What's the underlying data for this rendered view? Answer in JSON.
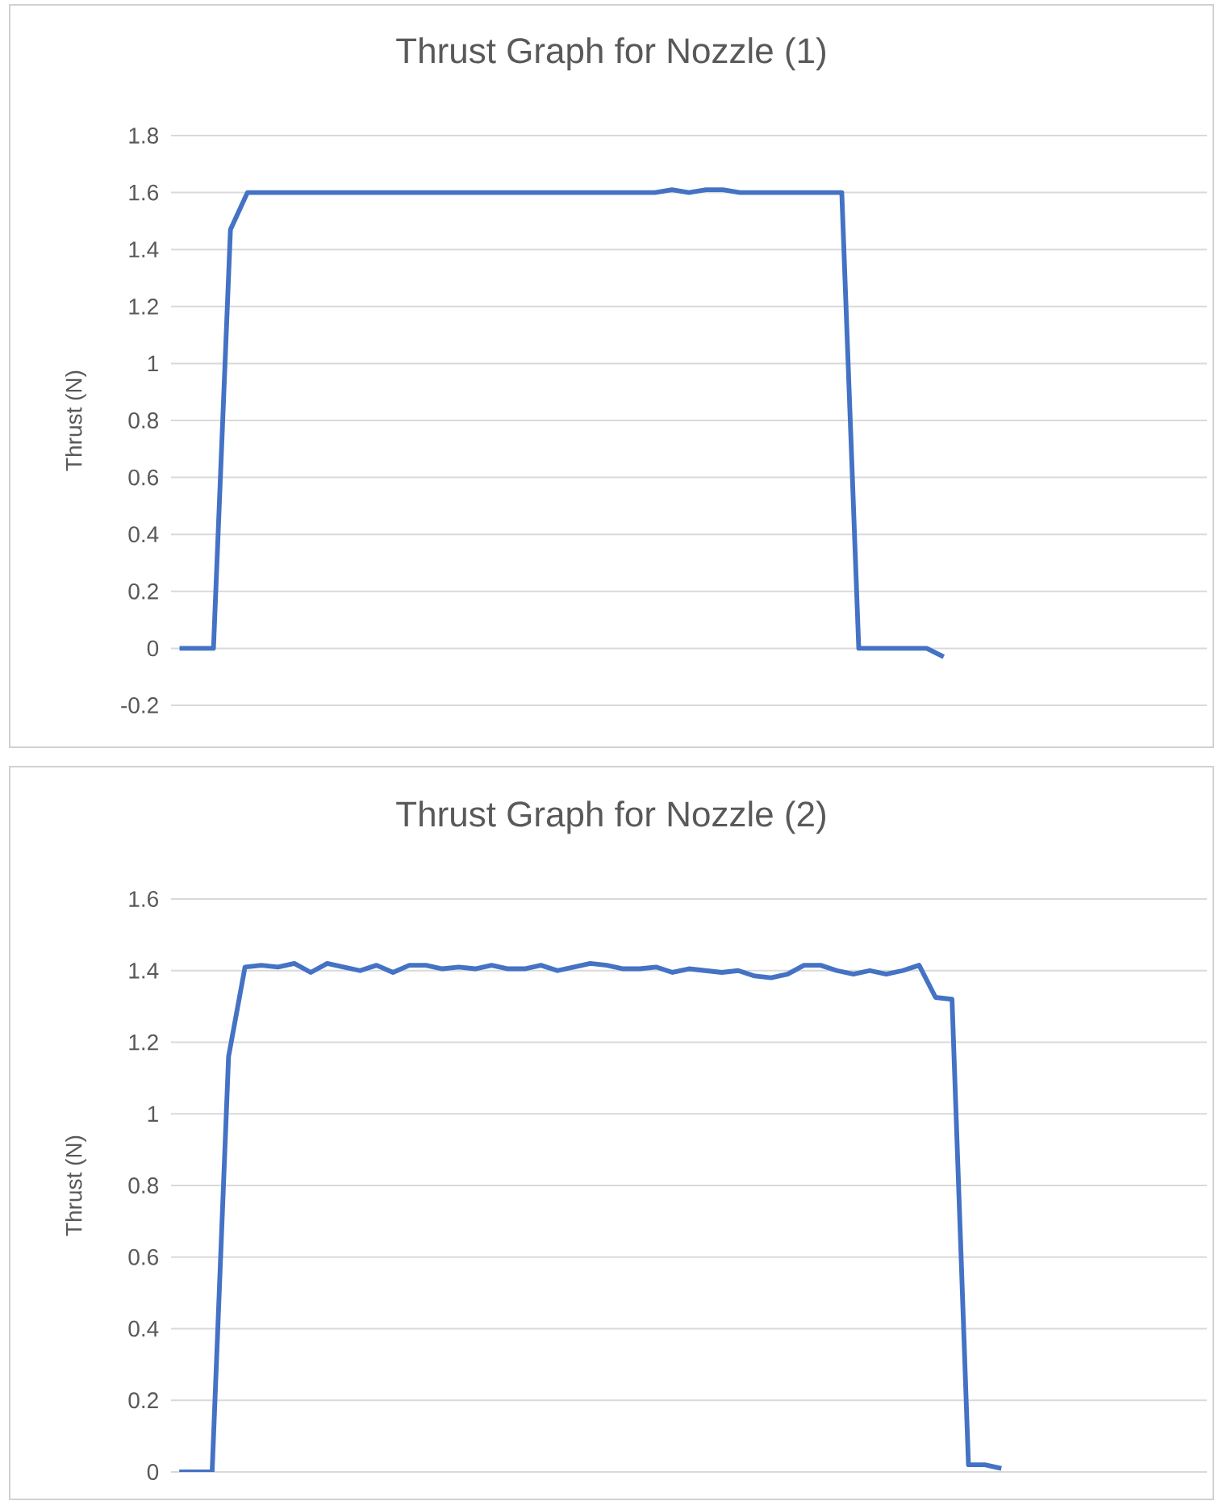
{
  "chart_data": [
    {
      "type": "line",
      "title": "Thrust Graph for Nozzle (1)",
      "ylabel": "Thrust (N)",
      "categories": [
        null,
        null,
        null,
        null,
        null,
        null,
        null,
        null,
        null,
        null,
        null,
        null,
        null,
        null,
        null,
        null,
        null,
        null,
        null,
        null,
        null,
        null,
        null,
        null,
        null,
        null,
        null,
        null,
        null,
        null,
        null,
        null,
        null,
        null,
        null,
        null,
        null,
        null,
        null,
        null,
        null,
        null,
        null,
        null,
        null,
        null,
        null,
        null,
        null,
        null,
        null,
        null,
        null,
        null,
        null,
        null,
        null,
        null,
        null,
        null,
        null
      ],
      "values": [
        0,
        0,
        0,
        1.47,
        1.6,
        1.6,
        1.6,
        1.6,
        1.6,
        1.6,
        1.6,
        1.6,
        1.6,
        1.6,
        1.6,
        1.6,
        1.6,
        1.6,
        1.6,
        1.6,
        1.6,
        1.6,
        1.6,
        1.6,
        1.6,
        1.6,
        1.6,
        1.6,
        1.6,
        1.61,
        1.6,
        1.61,
        1.61,
        1.6,
        1.6,
        1.6,
        1.6,
        1.6,
        1.6,
        1.6,
        0,
        0,
        0,
        0,
        0,
        -0.03,
        null,
        null,
        null,
        null,
        null,
        null,
        null,
        null,
        null,
        null,
        null,
        null,
        null,
        null,
        null
      ],
      "color": "#4472c4",
      "ylim": [
        -0.2,
        1.8
      ],
      "yticks": [
        -0.2,
        0,
        0.2,
        0.4,
        0.6,
        0.8,
        1,
        1.2,
        1.4,
        1.6,
        1.8
      ],
      "grid": "y"
    },
    {
      "type": "line",
      "title": "Thrust Graph for Nozzle (2)",
      "ylabel": "Thrust (N)",
      "categories": [
        null,
        null,
        null,
        null,
        null,
        null,
        null,
        null,
        null,
        null,
        null,
        null,
        null,
        null,
        null,
        null,
        null,
        null,
        null,
        null,
        null,
        null,
        null,
        null,
        null,
        null,
        null,
        null,
        null,
        null,
        null,
        null,
        null,
        null,
        null,
        null,
        null,
        null,
        null,
        null,
        null,
        null,
        null,
        null,
        null,
        null,
        null,
        null,
        null,
        null,
        null,
        null,
        null,
        null,
        null,
        null,
        null,
        null,
        null,
        null,
        null,
        null,
        null
      ],
      "values": [
        0,
        0,
        0,
        1.16,
        1.41,
        1.415,
        1.41,
        1.42,
        1.395,
        1.42,
        1.41,
        1.4,
        1.415,
        1.395,
        1.415,
        1.415,
        1.405,
        1.41,
        1.405,
        1.415,
        1.405,
        1.405,
        1.415,
        1.4,
        1.41,
        1.42,
        1.415,
        1.405,
        1.405,
        1.41,
        1.395,
        1.405,
        1.4,
        1.395,
        1.4,
        1.385,
        1.38,
        1.39,
        1.415,
        1.415,
        1.4,
        1.39,
        1.4,
        1.39,
        1.4,
        1.415,
        1.325,
        1.32,
        0.02,
        0.02,
        0.01,
        null,
        null,
        null,
        null,
        null,
        null,
        null,
        null,
        null,
        null,
        null,
        null
      ],
      "color": "#4472c4",
      "ylim": [
        0,
        1.6
      ],
      "yticks": [
        0,
        0.2,
        0.4,
        0.6,
        0.8,
        1,
        1.2,
        1.4,
        1.6
      ],
      "grid": "y"
    }
  ]
}
